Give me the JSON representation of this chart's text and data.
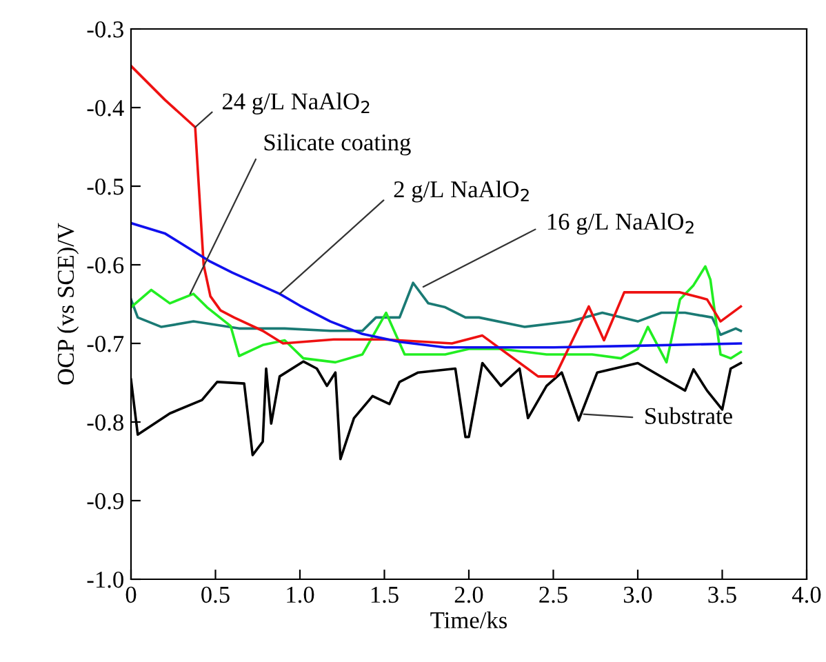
{
  "chart_data": {
    "type": "line",
    "xlabel": "Time/ks",
    "ylabel": "OCP (vs SCE)/V",
    "xlim": [
      0,
      4.0
    ],
    "ylim": [
      -1.0,
      -0.3
    ],
    "xticks": [
      {
        "value": 0,
        "label": "0"
      },
      0.5,
      {
        "value": 1,
        "label": "1.0"
      },
      1.5,
      {
        "value": 2,
        "label": "2.0"
      },
      2.5,
      {
        "value": 3,
        "label": "3.0"
      },
      3.5,
      {
        "value": 4,
        "label": "4.0"
      }
    ],
    "yticks": [
      {
        "value": -1,
        "label": "-1.0"
      },
      -0.9,
      -0.8,
      -0.7,
      -0.6,
      -0.5,
      -0.4,
      -0.3
    ],
    "grid": false,
    "legend": false,
    "marker": "none",
    "line_style": "solid",
    "series": [
      {
        "color": "#000000",
        "x": [
          0,
          0.04,
          0.23,
          0.42,
          0.51,
          0.67,
          0.72,
          0.78,
          0.8,
          0.83,
          0.88,
          1.02,
          1.1,
          1.16,
          1.21,
          1.24,
          1.32,
          1.43,
          1.53,
          1.59,
          1.7,
          1.92,
          1.98,
          2.0,
          2.08,
          2.19,
          2.3,
          2.35,
          2.46,
          2.55,
          2.65,
          2.76,
          3.0,
          3.28,
          3.33,
          3.41,
          3.5,
          3.55,
          3.61
        ],
        "values": [
          -0.746,
          -0.816,
          -0.789,
          -0.772,
          -0.749,
          -0.751,
          -0.842,
          -0.825,
          -0.732,
          -0.802,
          -0.742,
          -0.723,
          -0.732,
          -0.754,
          -0.737,
          -0.847,
          -0.795,
          -0.767,
          -0.777,
          -0.749,
          -0.737,
          -0.732,
          -0.819,
          -0.819,
          -0.725,
          -0.754,
          -0.732,
          -0.795,
          -0.754,
          -0.737,
          -0.798,
          -0.737,
          -0.725,
          -0.76,
          -0.733,
          -0.76,
          -0.784,
          -0.732,
          -0.725
        ]
      },
      {
        "color": "#1a7a74",
        "x": [
          0,
          0.04,
          0.18,
          0.37,
          0.64,
          0.91,
          1.18,
          1.37,
          1.45,
          1.59,
          1.67,
          1.76,
          1.86,
          1.98,
          2.06,
          2.33,
          2.6,
          2.79,
          3.0,
          3.14,
          3.28,
          3.44,
          3.49,
          3.58,
          3.61
        ],
        "values": [
          -0.644,
          -0.667,
          -0.679,
          -0.672,
          -0.681,
          -0.681,
          -0.684,
          -0.684,
          -0.667,
          -0.667,
          -0.623,
          -0.649,
          -0.654,
          -0.667,
          -0.667,
          -0.679,
          -0.672,
          -0.661,
          -0.672,
          -0.661,
          -0.661,
          -0.667,
          -0.689,
          -0.681,
          -0.684
        ]
      },
      {
        "color": "#22ee22",
        "x": [
          0,
          0.12,
          0.23,
          0.37,
          0.45,
          0.59,
          0.64,
          0.78,
          0.91,
          1.02,
          1.21,
          1.37,
          1.51,
          1.62,
          1.86,
          2.0,
          2.19,
          2.46,
          2.73,
          2.9,
          3.0,
          3.06,
          3.17,
          3.25,
          3.33,
          3.4,
          3.43,
          3.49,
          3.55,
          3.61
        ],
        "values": [
          -0.654,
          -0.632,
          -0.649,
          -0.637,
          -0.654,
          -0.678,
          -0.716,
          -0.702,
          -0.696,
          -0.719,
          -0.724,
          -0.714,
          -0.661,
          -0.714,
          -0.714,
          -0.707,
          -0.707,
          -0.714,
          -0.714,
          -0.719,
          -0.707,
          -0.679,
          -0.724,
          -0.644,
          -0.626,
          -0.602,
          -0.619,
          -0.714,
          -0.719,
          -0.711
        ]
      },
      {
        "color": "#ee1111",
        "x": [
          0,
          0.2,
          0.38,
          0.43,
          0.47,
          0.53,
          0.61,
          0.78,
          0.9,
          1.2,
          1.5,
          1.9,
          2.08,
          2.41,
          2.51,
          2.71,
          2.8,
          2.92,
          3.25,
          3.41,
          3.49,
          3.61
        ],
        "values": [
          -0.347,
          -0.39,
          -0.425,
          -0.6,
          -0.64,
          -0.658,
          -0.667,
          -0.684,
          -0.7,
          -0.695,
          -0.695,
          -0.7,
          -0.69,
          -0.742,
          -0.742,
          -0.653,
          -0.696,
          -0.635,
          -0.635,
          -0.644,
          -0.672,
          -0.653
        ]
      },
      {
        "color": "#1010ee",
        "x": [
          0,
          0.2,
          0.47,
          0.6,
          0.88,
          1.0,
          1.18,
          1.37,
          1.59,
          1.86,
          2.0,
          2.5,
          3.0,
          3.61
        ],
        "values": [
          -0.547,
          -0.56,
          -0.596,
          -0.61,
          -0.637,
          -0.652,
          -0.672,
          -0.688,
          -0.698,
          -0.705,
          -0.705,
          -0.705,
          -0.703,
          -0.7
        ]
      }
    ],
    "annotations": [
      {
        "text": "24 g/L NaAlO$_{2}$",
        "x": 0.38,
        "y": -0.425
      },
      {
        "text": "Silicate coating",
        "x": 0.35,
        "y": -0.637
      },
      {
        "text": "2 g/L NaAlO$_{2}$",
        "x": 0.88,
        "y": -0.637
      },
      {
        "text": "16 g/L NaAlO$_{2}$",
        "x": 1.73,
        "y": -0.628
      },
      {
        "text": "Substrate",
        "x": 2.68,
        "y": -0.79
      }
    ]
  }
}
